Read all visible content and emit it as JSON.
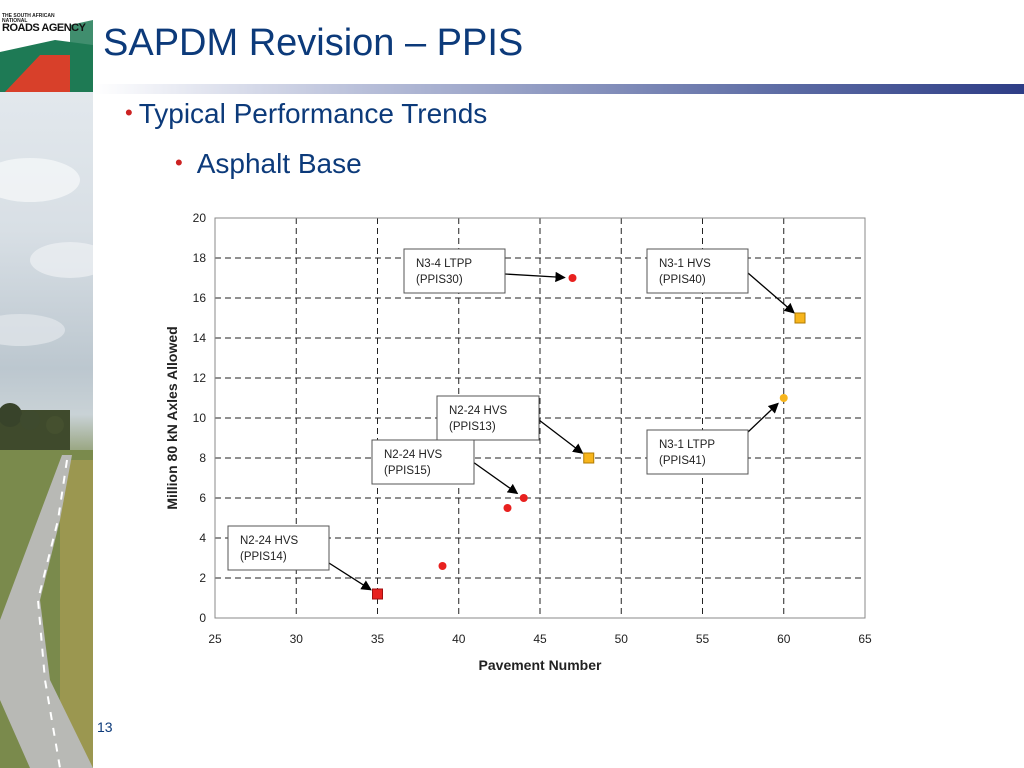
{
  "logo": {
    "line1": "THE SOUTH AFRICAN NATIONAL",
    "line2": "ROADS AGENCY"
  },
  "slide": {
    "title": "SAPDM Revision – PPIS",
    "bullet1": "Typical Performance Trends",
    "bullet2": "Asphalt Base",
    "bullet_symbol": "•",
    "page_number": "13"
  },
  "chart_data": {
    "type": "scatter",
    "xlabel": "Pavement Number",
    "ylabel": "Million 80 kN Axles Allowed",
    "xlim": [
      25,
      65
    ],
    "ylim": [
      0,
      20
    ],
    "xticks": [
      25,
      30,
      35,
      40,
      45,
      50,
      55,
      60,
      65
    ],
    "yticks": [
      0,
      2,
      4,
      6,
      8,
      10,
      12,
      14,
      16,
      18,
      20
    ],
    "grid": true,
    "points": [
      {
        "x": 35,
        "y": 1.2,
        "marker": "square",
        "color": "#e8211f"
      },
      {
        "x": 39,
        "y": 2.6,
        "marker": "circle",
        "color": "#e8211f"
      },
      {
        "x": 43,
        "y": 5.5,
        "marker": "circle",
        "color": "#e8211f"
      },
      {
        "x": 44,
        "y": 6.0,
        "marker": "circle",
        "color": "#e8211f"
      },
      {
        "x": 47,
        "y": 17.0,
        "marker": "circle",
        "color": "#e8211f"
      },
      {
        "x": 48,
        "y": 8.0,
        "marker": "square",
        "color": "#f7b51c"
      },
      {
        "x": 60,
        "y": 11.0,
        "marker": "circle",
        "color": "#f7b51c"
      },
      {
        "x": 61,
        "y": 15.0,
        "marker": "square",
        "color": "#f7b51c"
      }
    ],
    "annotations": [
      {
        "line1": "N2-24 HVS",
        "line2": "(PPIS14)",
        "target": [
          35,
          1.2
        ]
      },
      {
        "line1": "N2-24 HVS",
        "line2": "(PPIS15)",
        "target": [
          44,
          6.0
        ]
      },
      {
        "line1": "N2-24 HVS",
        "line2": "(PPIS13)",
        "target": [
          48,
          8.0
        ]
      },
      {
        "line1": "N3-4 LTPP",
        "line2": "(PPIS30)",
        "target": [
          47,
          17.0
        ]
      },
      {
        "line1": "N3-1 HVS",
        "line2": "(PPIS40)",
        "target": [
          61,
          15.0
        ]
      },
      {
        "line1": "N3-1 LTPP",
        "line2": "(PPIS41)",
        "target": [
          60,
          11.0
        ]
      }
    ]
  }
}
